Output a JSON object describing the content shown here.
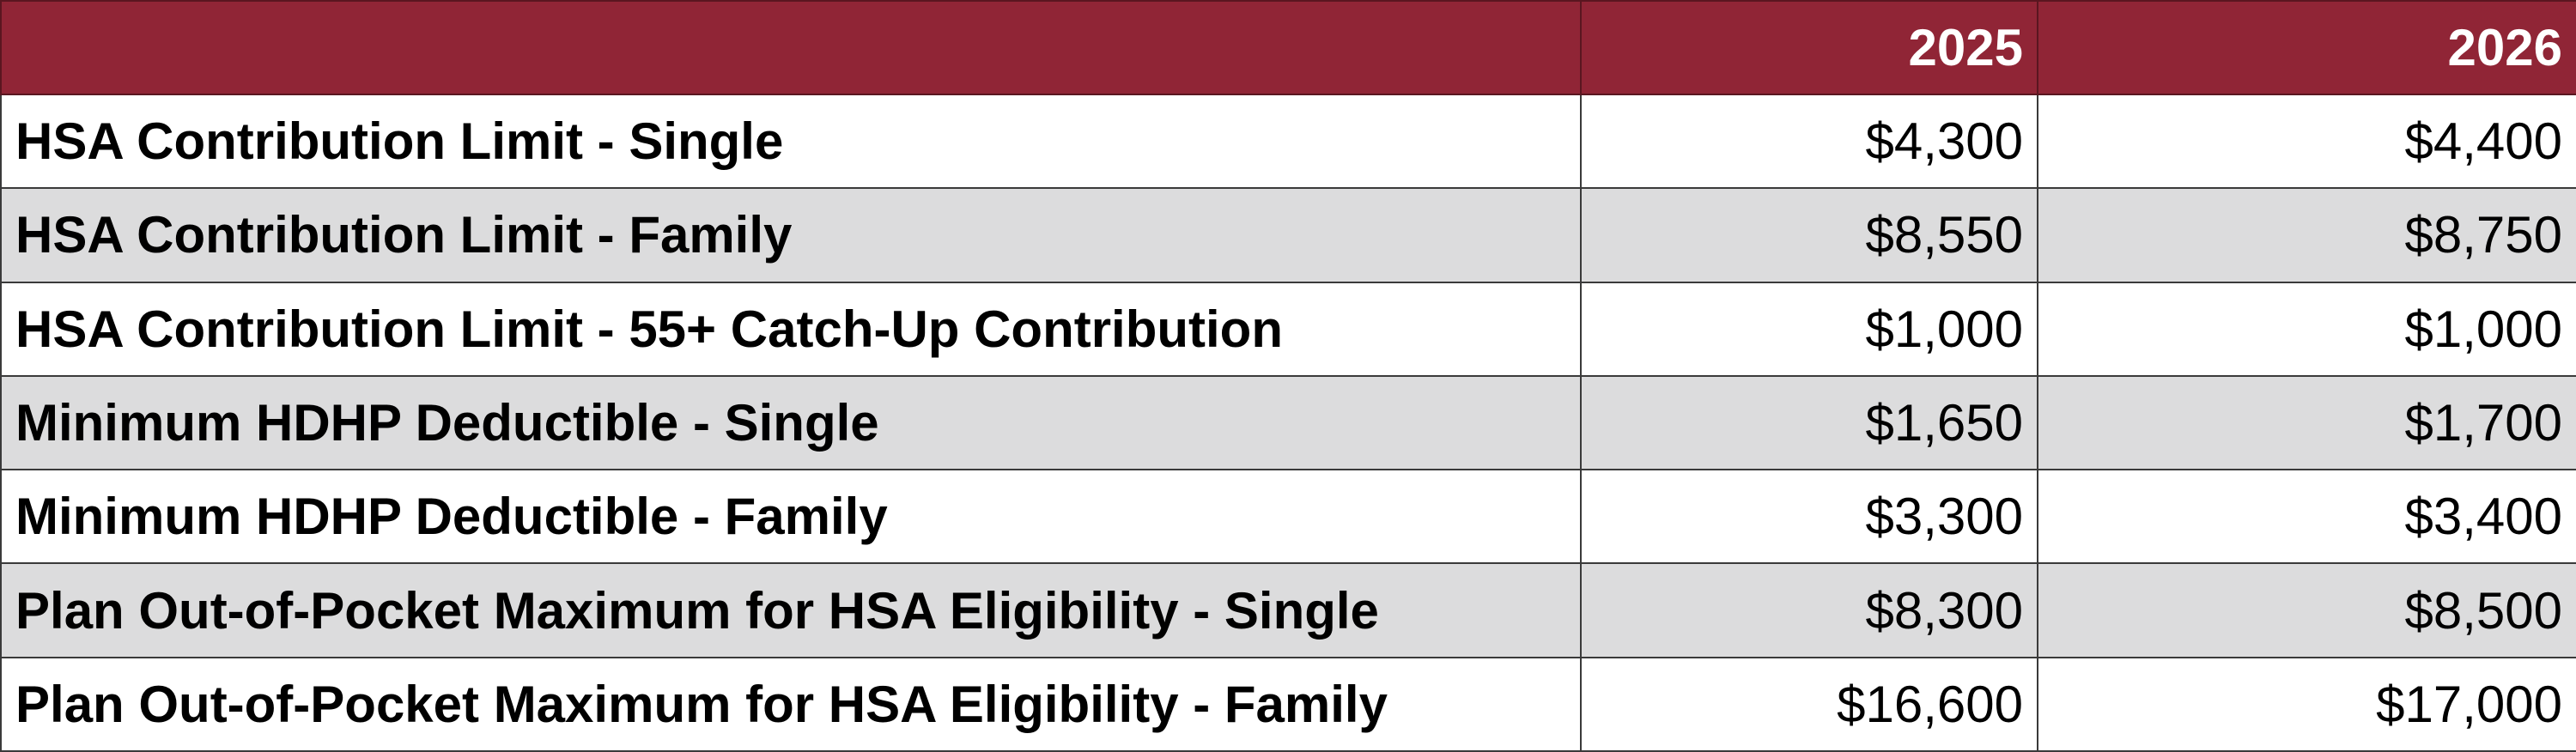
{
  "table": {
    "columns": [
      "2025",
      "2026"
    ],
    "rows": [
      {
        "label": "HSA Contribution Limit - Single",
        "values": [
          "$4,300",
          "$4,400"
        ]
      },
      {
        "label": "HSA Contribution Limit - Family",
        "values": [
          "$8,550",
          "$8,750"
        ]
      },
      {
        "label": "HSA Contribution Limit - 55+ Catch-Up Contribution",
        "values": [
          "$1,000",
          "$1,000"
        ]
      },
      {
        "label": "Minimum HDHP Deductible - Single",
        "values": [
          "$1,650",
          "$1,700"
        ]
      },
      {
        "label": "Minimum HDHP Deductible - Family",
        "values": [
          "$3,300",
          "$3,400"
        ]
      },
      {
        "label": "Plan Out-of-Pocket Maximum for HSA Eligibility - Single",
        "values": [
          "$8,300",
          "$8,500"
        ]
      },
      {
        "label": "Plan Out-of-Pocket Maximum for HSA Eligibility - Family",
        "values": [
          "$16,600",
          "$17,000"
        ]
      }
    ]
  }
}
